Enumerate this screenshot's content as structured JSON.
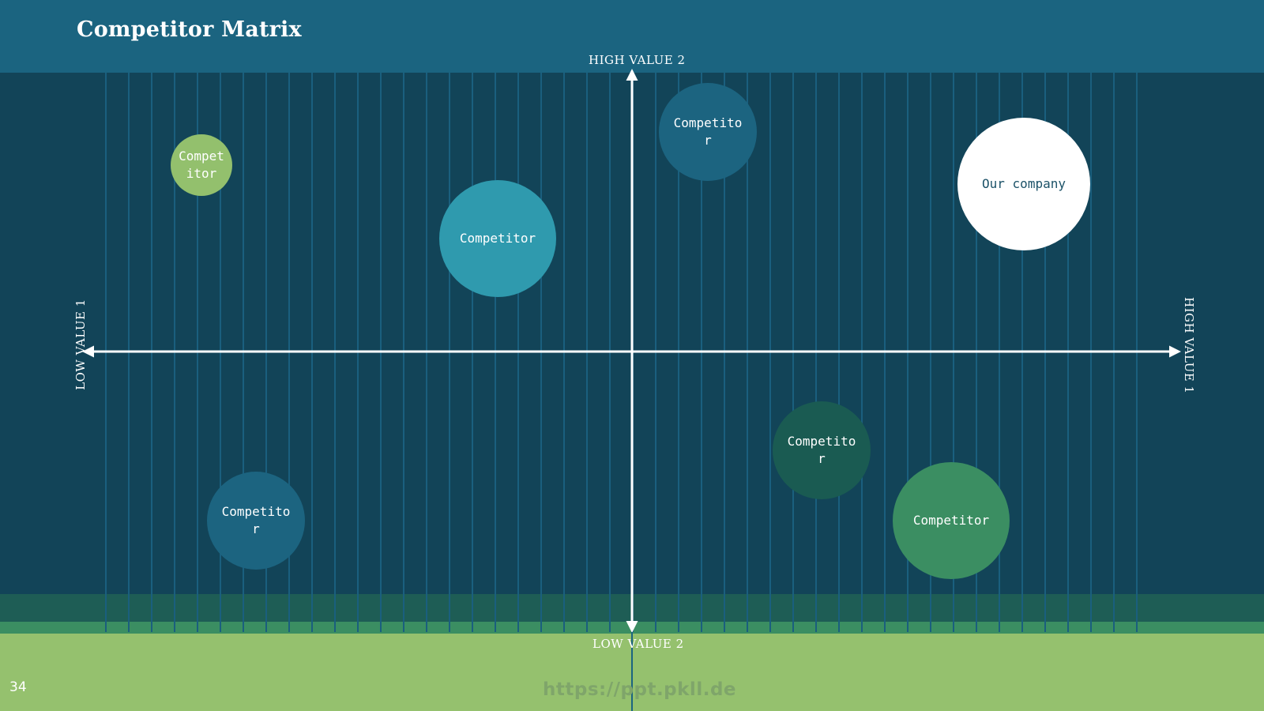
{
  "slide": {
    "title": "Competitor Matrix",
    "number": "34",
    "watermark": "https://ppt.pkll.de"
  },
  "axes": {
    "top": "HIGH VALUE 2",
    "bottom": "LOW VALUE 2",
    "left": "LOW VALUE 1",
    "right": "HIGH VALUE 1"
  },
  "bubbles": [
    {
      "label": "Competitor",
      "color": "#93c06d"
    },
    {
      "label": "Competitor",
      "color": "#2f9aae"
    },
    {
      "label": "Competitor",
      "color": "#1c6480"
    },
    {
      "label": "Our company",
      "color": "#ffffff"
    },
    {
      "label": "Competitor",
      "color": "#1c6480"
    },
    {
      "label": "Competitor",
      "color": "#1a5b52"
    },
    {
      "label": "Competitor",
      "color": "#3b8e62"
    }
  ],
  "colors": {
    "header": "#1b6480",
    "background": "#124458",
    "stripe": "#1a5f7e",
    "footer": "#95c16e",
    "axis": "#ffffff"
  }
}
